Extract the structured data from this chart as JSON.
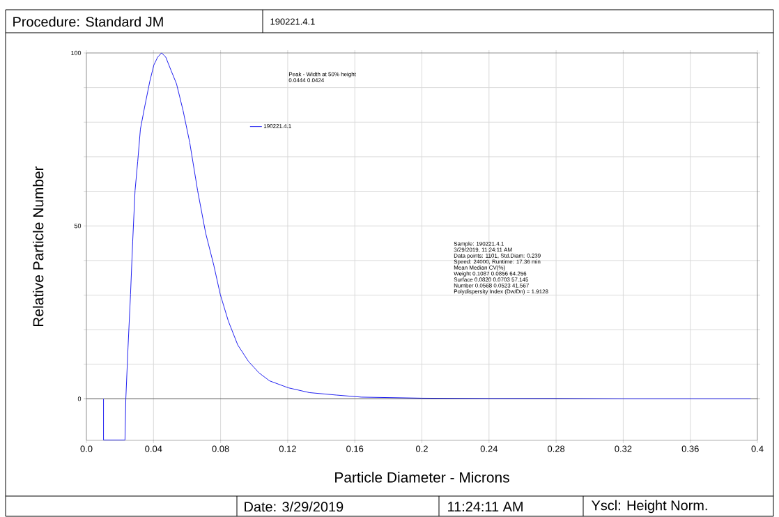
{
  "chart_data": {
    "type": "line",
    "title": "Procedure: Standard JM",
    "subtitle": "190221.4.1",
    "xlabel": "Particle Diameter  -  Microns",
    "ylabel": "Relative Particle Number",
    "x": [
      0.0102,
      0.0102,
      0.023,
      0.0235,
      0.0248,
      0.0263,
      0.0276,
      0.029,
      0.0306,
      0.0322,
      0.0346,
      0.0378,
      0.0402,
      0.0425,
      0.0448,
      0.0473,
      0.0505,
      0.0537,
      0.0576,
      0.0616,
      0.0663,
      0.0711,
      0.0759,
      0.0798,
      0.0846,
      0.0902,
      0.0965,
      0.1029,
      0.1092,
      0.1203,
      0.133,
      0.1489,
      0.164,
      0.2,
      0.24,
      0.28,
      0.32,
      0.396
    ],
    "series": [
      {
        "name": "190221.4.1",
        "color": "#2020f0",
        "values": [
          0,
          -11.9,
          -11.9,
          0,
          14.8,
          30.2,
          45.6,
          60.2,
          68.7,
          78,
          84.1,
          91.8,
          96.5,
          98.8,
          100,
          98.8,
          94.9,
          91.1,
          83.4,
          74.1,
          60.2,
          47.9,
          38.7,
          30.2,
          22.5,
          15.6,
          10.9,
          7.5,
          5.2,
          3.2,
          1.8,
          1.1,
          0.5,
          0.2,
          0.1,
          0.1,
          0,
          0
        ]
      }
    ],
    "xlim": [
      0,
      0.4
    ],
    "ylim": [
      -12,
      100
    ],
    "xticks": [
      {
        "value": 0,
        "label": "0.0"
      },
      0.04,
      0.08,
      0.12,
      0.16,
      0.2,
      0.24,
      0.28,
      0.32,
      0.36,
      0.4
    ],
    "yticks": [
      0,
      {
        "value": 10,
        "label": null
      },
      {
        "value": 20,
        "label": null
      },
      {
        "value": 30,
        "label": null
      },
      {
        "value": 40,
        "label": null
      },
      50,
      {
        "value": 60,
        "label": null
      },
      {
        "value": 70,
        "label": null
      },
      {
        "value": 80,
        "label": null
      },
      {
        "value": 90,
        "label": null
      },
      100
    ],
    "grid": true,
    "legend": "top left",
    "annotations": [
      "Peak  -  Width at 50% height",
      "0.0444  0.0424",
      "Sample: 190221.4.1",
      "3/29/2019,   11:24:11 AM",
      "Data points: 1101,  Std.Diam: 0.239",
      "Speed: 24000,  Runtime: 17.36 min",
      "Mean  Median  CV(%)",
      "Weight  0.1087  0.0856  64.256",
      "Surface  0.0820  0.0703  57.145",
      "Number  0.0568  0.0523  41.567",
      "Polydispersity Index (Dw/Dn) = 1.9128",
      "Date: 3/29/2019",
      "11:24:11 AM",
      "Yscl: Height Norm."
    ]
  }
}
